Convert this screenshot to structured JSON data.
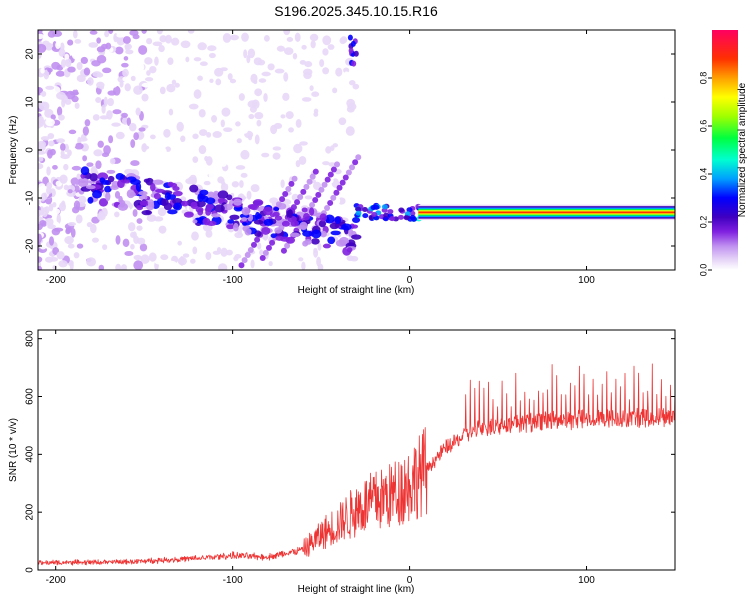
{
  "title": "S196.2025.345.10.15.R16",
  "chart_data": [
    {
      "type": "heatmap",
      "xlabel": "Height of straight line (km)",
      "ylabel": "Frequency (Hz)",
      "xlim": [
        -210,
        150
      ],
      "ylim": [
        -25,
        25
      ],
      "xticks": [
        -200,
        -100,
        0,
        100
      ],
      "yticks": [
        -20,
        -10,
        0,
        10,
        20
      ],
      "colorbar": {
        "label": "Normalized spectral amplitude",
        "range": [
          0,
          1
        ],
        "ticks": [
          "0.0",
          "0.2",
          "0.4",
          "0.6",
          "0.8"
        ],
        "colors": [
          "#ffffff",
          "#e8d8f8",
          "#c090f0",
          "#8020e0",
          "#4000c0",
          "#0000ff",
          "#00a0ff",
          "#00ffd0",
          "#00ff40",
          "#a0ff00",
          "#ffff00",
          "#ffa000",
          "#ff3000",
          "#ff0060"
        ]
      },
      "features": [
        {
          "x_range": [
            -185,
            -30
          ],
          "freq_start": -7,
          "freq_end": -18,
          "amplitude": 0.25
        },
        {
          "x_range": [
            -30,
            10
          ],
          "freq": -13,
          "amplitude": 0.4
        },
        {
          "x_range": [
            5,
            150
          ],
          "freq": -13,
          "amplitude": 0.95
        }
      ]
    },
    {
      "type": "line",
      "xlabel": "Height of straight line (km)",
      "ylabel": "SNR (10 * v/v)",
      "xlim": [
        -210,
        150
      ],
      "ylim": [
        0,
        830
      ],
      "xticks": [
        -200,
        -100,
        0,
        100
      ],
      "yticks": [
        0,
        200,
        400,
        600,
        800
      ],
      "series": [
        {
          "color": "#ee3333",
          "x": [
            -210,
            -160,
            -120,
            -100,
            -80,
            -60,
            -50,
            -40,
            -30,
            -20,
            -10,
            0,
            10,
            20,
            30,
            40,
            60,
            80,
            100,
            120,
            150
          ],
          "y": [
            25,
            28,
            40,
            50,
            45,
            70,
            120,
            160,
            210,
            240,
            260,
            300,
            350,
            420,
            460,
            490,
            505,
            515,
            520,
            525,
            530
          ]
        }
      ]
    }
  ]
}
